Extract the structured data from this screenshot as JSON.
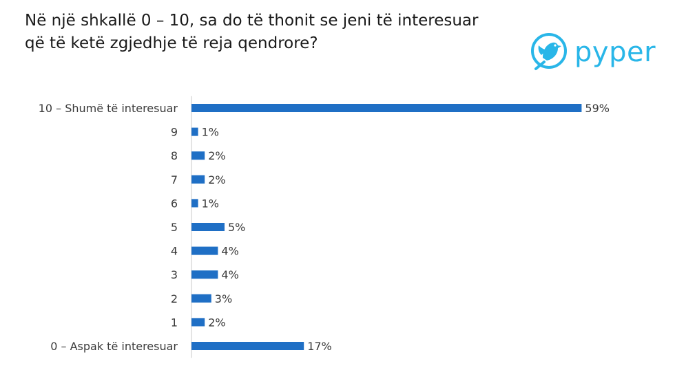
{
  "title": "Në një shkallë 0 – 10, sa do të thonit se jeni të interesuar që të ketë zgjedhje të reja qendrore?",
  "logo": {
    "text": "pyper",
    "icon": "bird-icon",
    "color": "#29b6e8"
  },
  "chart_data": {
    "type": "bar",
    "orientation": "horizontal",
    "categories": [
      "10 – Shumë të interesuar",
      "9",
      "8",
      "7",
      "6",
      "5",
      "4",
      "3",
      "2",
      "1",
      "0 – Aspak të interesuar"
    ],
    "values": [
      59,
      1,
      2,
      2,
      1,
      5,
      4,
      4,
      3,
      2,
      17
    ],
    "value_labels": [
      "59%",
      "1%",
      "2%",
      "2%",
      "1%",
      "5%",
      "4%",
      "4%",
      "3%",
      "2%",
      "17%"
    ],
    "unit": "%",
    "bar_color": "#1f6fc5",
    "grid": false,
    "legend": "none"
  }
}
